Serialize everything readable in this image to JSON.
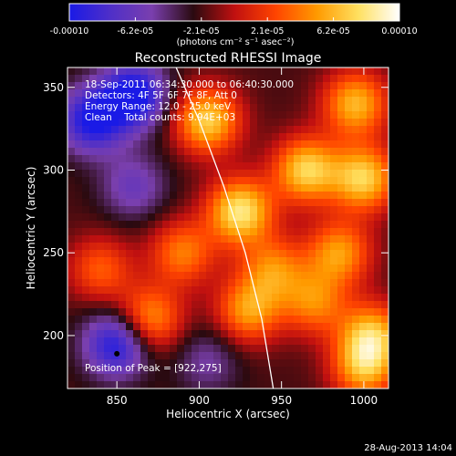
{
  "chart_data": {
    "type": "heatmap",
    "title": "Reconstructed RHESSI Image",
    "xlabel": "Heliocentric X (arcsec)",
    "ylabel": "Heliocentric Y (arcsec)",
    "xlim": [
      820,
      1015
    ],
    "ylim": [
      168,
      362
    ],
    "x_ticks": [
      850,
      900,
      950,
      1000
    ],
    "y_ticks": [
      200,
      250,
      300,
      350
    ],
    "colorbar": {
      "min": -0.0001,
      "max": 0.0001,
      "tick_labels": [
        "-0.00010",
        "-6.2e-05",
        "-2.1e-05",
        "2.1e-05",
        "6.2e-05",
        "0.00010"
      ],
      "units_label": "(photons cm⁻² s⁻¹ asec⁻²)",
      "colormap": [
        "#1a1ae6",
        "#4f2fc8",
        "#7a3fae",
        "#2a0a10",
        "#c01010",
        "#ff4400",
        "#ff9a00",
        "#ffe060",
        "#ffffff"
      ]
    },
    "info_lines": [
      "18-Sep-2011 06:34:30.000 to 06:40:30.000",
      "Detectors: 4F 5F 6F 7F 8F, Att 0",
      "Energy Range: 12.0 - 25.0 keV",
      "Clean    Total counts: 9.94E+03"
    ],
    "peak_text": "Position of Peak = [922,275]",
    "peak_marker": {
      "x": 850,
      "y": 189
    },
    "limb_curve": [
      [
        886,
        362
      ],
      [
        900,
        330
      ],
      [
        915,
        290
      ],
      [
        928,
        250
      ],
      [
        938,
        210
      ],
      [
        945,
        168
      ]
    ],
    "emission_blobs": [
      {
        "x": 905,
        "y": 330,
        "v": 9e-05
      },
      {
        "x": 925,
        "y": 275,
        "v": 0.0001
      },
      {
        "x": 965,
        "y": 300,
        "v": 9e-05
      },
      {
        "x": 995,
        "y": 340,
        "v": 8e-05
      },
      {
        "x": 1000,
        "y": 295,
        "v": 9e-05
      },
      {
        "x": 985,
        "y": 250,
        "v": 7e-05
      },
      {
        "x": 945,
        "y": 240,
        "v": 6e-05
      },
      {
        "x": 970,
        "y": 220,
        "v": 6e-05
      },
      {
        "x": 1005,
        "y": 200,
        "v": 8e-05
      },
      {
        "x": 930,
        "y": 215,
        "v": 7e-05
      },
      {
        "x": 870,
        "y": 210,
        "v": 7e-05
      },
      {
        "x": 840,
        "y": 240,
        "v": 5e-05
      },
      {
        "x": 890,
        "y": 250,
        "v": 6e-05
      },
      {
        "x": 860,
        "y": 290,
        "v": -4e-05
      },
      {
        "x": 835,
        "y": 330,
        "v": -8e-05
      },
      {
        "x": 860,
        "y": 345,
        "v": -9e-05
      },
      {
        "x": 905,
        "y": 185,
        "v": -3e-05
      },
      {
        "x": 850,
        "y": 195,
        "v": -8e-05
      },
      {
        "x": 1000,
        "y": 180,
        "v": 7e-05
      }
    ]
  },
  "footer_timestamp": "28-Aug-2013 14:04"
}
